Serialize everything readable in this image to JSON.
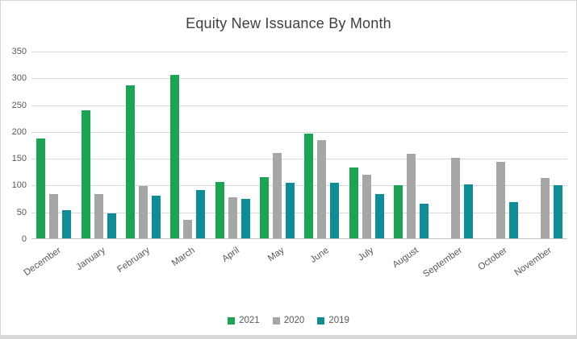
{
  "title": "Equity New Issuance By Month",
  "colors": {
    "series_2021": "#1ba552",
    "series_2020": "#a6a6a6",
    "series_2019": "#0f8d96",
    "gridline": "#d9d9d9",
    "axis_text": "#595959",
    "title_text": "#404040"
  },
  "chart_data": {
    "type": "bar",
    "title": "Equity New Issuance By Month",
    "categories": [
      "December",
      "January",
      "February",
      "March",
      "April",
      "May",
      "June",
      "July",
      "August",
      "September",
      "October",
      "November"
    ],
    "series": [
      {
        "name": "2021",
        "color": "#1ba552",
        "values": [
          187,
          239,
          285,
          305,
          105,
          114,
          195,
          132,
          99,
          null,
          null,
          null
        ]
      },
      {
        "name": "2020",
        "color": "#a6a6a6",
        "values": [
          82,
          82,
          97,
          34,
          76,
          160,
          184,
          118,
          157,
          150,
          143,
          112
        ]
      },
      {
        "name": "2019",
        "color": "#0f8d96",
        "values": [
          52,
          47,
          80,
          90,
          73,
          104,
          104,
          83,
          64,
          100,
          68,
          99
        ]
      }
    ],
    "xlabel": "",
    "ylabel": "",
    "ylim": [
      0,
      350
    ],
    "ytick_step": 50,
    "yticks": [
      0,
      50,
      100,
      150,
      200,
      250,
      300,
      350
    ],
    "grid": true,
    "legend_position": "bottom"
  }
}
